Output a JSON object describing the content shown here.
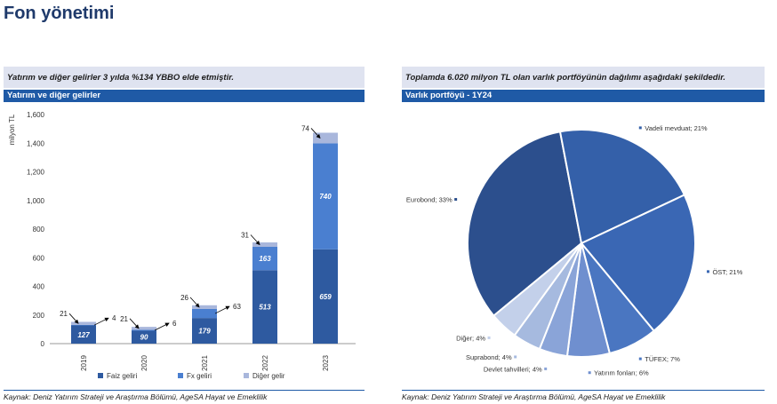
{
  "page": {
    "title": "Fon yönetimi"
  },
  "left_panel": {
    "subtitle": "Yatırım ve diğer gelirler 3 yılda %134 YBBO elde etmiştir.",
    "header": "Yatırım ve diğer gelirler",
    "source": "Kaynak: Deniz Yatırım Strateji ve Araştırma Bölümü, AgeSA Hayat ve Emeklilik"
  },
  "right_panel": {
    "subtitle": "Toplamda 6.020 milyon TL olan varlık portföyünün dağılımı aşağıdaki şekildedir.",
    "header": "Varlık portföyü - 1Y24",
    "source": "Kaynak: Deniz Yatırım Strateji ve Araştırma Bölümü, AgeSA Hayat ve Emeklilik"
  },
  "colors": {
    "faiz": "#2e5aa0",
    "fx": "#4a7fd0",
    "diger": "#a9b7dc",
    "pie": [
      "#2c4f8d",
      "#3460a9",
      "#3a67b4",
      "#4a76c1",
      "#6f8fcf",
      "#8aa4d8",
      "#a6badf",
      "#c3d0ea"
    ]
  },
  "chart_data": [
    {
      "type": "bar",
      "stacked": true,
      "title": "Yatırım ve diğer gelirler",
      "ylabel": "milyon TL",
      "xlabel": "",
      "ylim": [
        0,
        1600
      ],
      "yticks": [
        "0",
        "200",
        "400",
        "600",
        "800",
        "1,000",
        "1,200",
        "1,400",
        "1,600"
      ],
      "categories": [
        "2019",
        "2020",
        "2021",
        "2022",
        "2023"
      ],
      "series": [
        {
          "name": "Faiz geliri",
          "values": [
            127,
            90,
            179,
            513,
            659
          ]
        },
        {
          "name": "Fx geliri",
          "values": [
            4,
            6,
            63,
            163,
            740
          ]
        },
        {
          "name": "Diğer gelir",
          "values": [
            21,
            21,
            26,
            31,
            74
          ]
        }
      ],
      "inside_labels": [
        {
          "category": "2019",
          "series": "Faiz geliri",
          "text": "127"
        },
        {
          "category": "2020",
          "series": "Faiz geliri",
          "text": "90"
        },
        {
          "category": "2021",
          "series": "Faiz geliri",
          "text": "179"
        },
        {
          "category": "2022",
          "series": "Faiz geliri",
          "text": "513"
        },
        {
          "category": "2022",
          "series": "Fx geliri",
          "text": "163"
        },
        {
          "category": "2023",
          "series": "Faiz geliri",
          "text": "659"
        },
        {
          "category": "2023",
          "series": "Fx geliri",
          "text": "740"
        }
      ],
      "callouts": [
        {
          "category": "2019",
          "series": "Diğer gelir",
          "text": "21",
          "side": "left"
        },
        {
          "category": "2019",
          "series": "Fx geliri",
          "text": "4",
          "side": "right"
        },
        {
          "category": "2020",
          "series": "Diğer gelir",
          "text": "21",
          "side": "left"
        },
        {
          "category": "2020",
          "series": "Fx geliri",
          "text": "6",
          "side": "right"
        },
        {
          "category": "2021",
          "series": "Diğer gelir",
          "text": "26",
          "side": "left"
        },
        {
          "category": "2021",
          "series": "Fx geliri",
          "text": "63",
          "side": "right"
        },
        {
          "category": "2022",
          "series": "Diğer gelir",
          "text": "31",
          "side": "left"
        },
        {
          "category": "2023",
          "series": "Diğer gelir",
          "text": "74",
          "side": "left"
        }
      ],
      "legend": [
        "Faiz geliri",
        "Fx geliri",
        "Diğer gelir"
      ],
      "legend_position": "bottom"
    },
    {
      "type": "pie",
      "title": "Varlık portföyü - 1Y24",
      "slices": [
        {
          "label": "Eurobond",
          "value": 33,
          "text": "Eurobond; 33%"
        },
        {
          "label": "Vadeli mevduat",
          "value": 21,
          "text": "Vadeli mevduat; 21%"
        },
        {
          "label": "ÖST",
          "value": 21,
          "text": "ÖST; 21%"
        },
        {
          "label": "TÜFEX",
          "value": 7,
          "text": "TÜFEX; 7%"
        },
        {
          "label": "Yatırım fonları",
          "value": 6,
          "text": "Yatırım fonları; 6%"
        },
        {
          "label": "Devlet tahvilleri",
          "value": 4,
          "text": "Devlet tahvilleri; 4%"
        },
        {
          "label": "Suprabond",
          "value": 4,
          "text": "Suprabond; 4%"
        },
        {
          "label": "Diğer",
          "value": 4,
          "text": "Diğer; 4%"
        }
      ]
    }
  ]
}
